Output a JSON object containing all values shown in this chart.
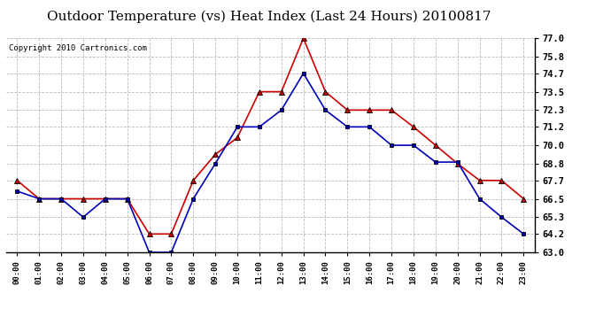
{
  "title": "Outdoor Temperature (vs) Heat Index (Last 24 Hours) 20100817",
  "copyright": "Copyright 2010 Cartronics.com",
  "hours": [
    "00:00",
    "01:00",
    "02:00",
    "03:00",
    "04:00",
    "05:00",
    "06:00",
    "07:00",
    "08:00",
    "09:00",
    "10:00",
    "11:00",
    "12:00",
    "13:00",
    "14:00",
    "15:00",
    "16:00",
    "17:00",
    "18:00",
    "19:00",
    "20:00",
    "21:00",
    "22:00",
    "23:00"
  ],
  "red_data": [
    67.7,
    66.5,
    66.5,
    66.5,
    66.5,
    66.5,
    64.2,
    64.2,
    67.7,
    69.4,
    70.5,
    73.5,
    73.5,
    77.0,
    73.5,
    72.3,
    72.3,
    72.3,
    71.2,
    70.0,
    68.8,
    67.7,
    67.7,
    66.5
  ],
  "blue_data": [
    67.0,
    66.5,
    66.5,
    65.3,
    66.5,
    66.5,
    63.0,
    63.0,
    66.5,
    68.8,
    71.2,
    71.2,
    72.3,
    74.7,
    72.3,
    71.2,
    71.2,
    70.0,
    70.0,
    68.9,
    68.9,
    66.5,
    65.3,
    64.2
  ],
  "red_color": "#cc0000",
  "blue_color": "#0000bb",
  "ylim_min": 63.0,
  "ylim_max": 77.0,
  "yticks": [
    63.0,
    64.2,
    65.3,
    66.5,
    67.7,
    68.8,
    70.0,
    71.2,
    72.3,
    73.5,
    74.7,
    75.8,
    77.0
  ],
  "background_color": "#ffffff",
  "grid_color": "#bbbbbb",
  "title_fontsize": 11,
  "copyright_fontsize": 6.5,
  "tick_fontsize": 7.5,
  "xtick_fontsize": 6.5
}
